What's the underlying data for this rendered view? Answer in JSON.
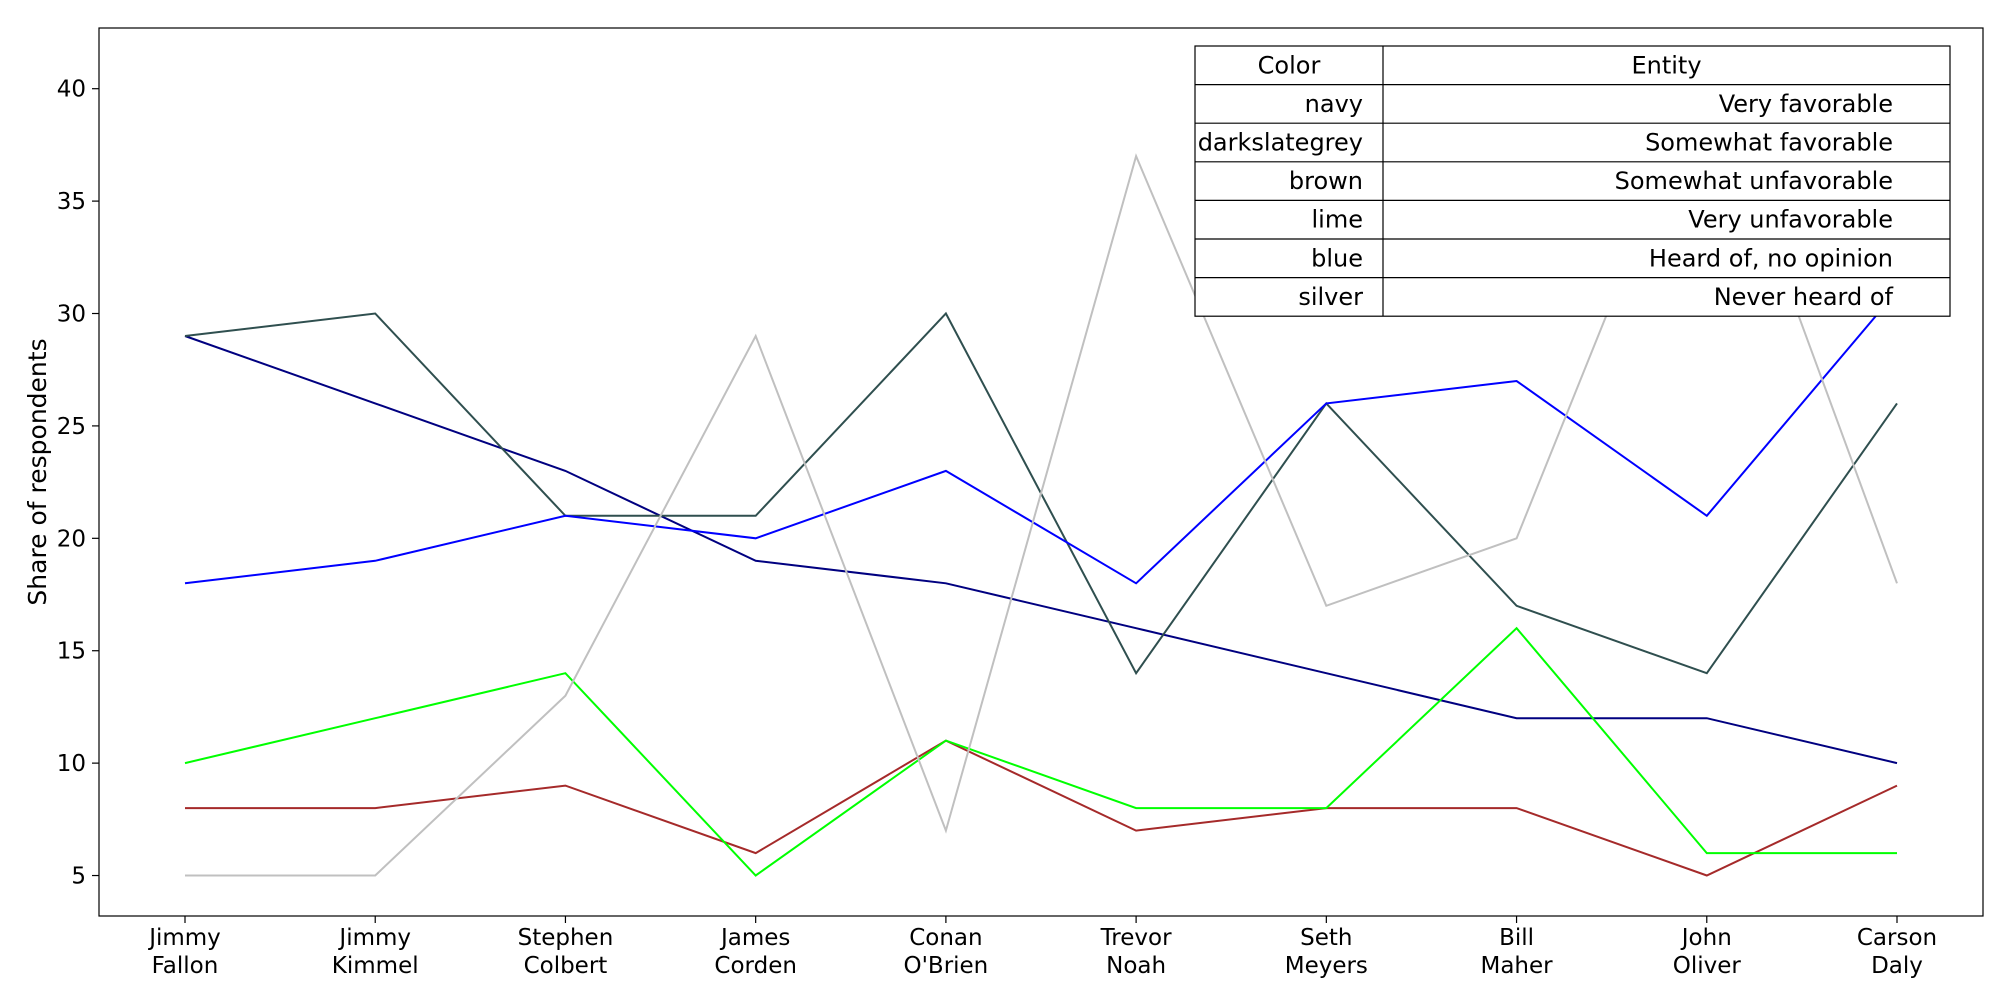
{
  "chart_data": {
    "type": "line",
    "title": "",
    "xlabel": "",
    "ylabel": "Share of respondents",
    "categories": [
      [
        "Jimmy",
        "Fallon"
      ],
      [
        "Jimmy",
        "Kimmel"
      ],
      [
        "Stephen",
        "Colbert"
      ],
      [
        "James",
        "Corden"
      ],
      [
        "Conan",
        "O'Brien"
      ],
      [
        "Trevor",
        "Noah"
      ],
      [
        "Seth",
        "Meyers"
      ],
      [
        "Bill",
        "Maher"
      ],
      [
        "John",
        "Oliver"
      ],
      [
        "Carson",
        "Daly"
      ]
    ],
    "ylim": [
      3.2,
      42.7
    ],
    "yticks": [
      5,
      10,
      15,
      20,
      25,
      30,
      35,
      40
    ],
    "grid": false,
    "series": [
      {
        "name": "Very favorable",
        "color": "#000080",
        "values": [
          29,
          26,
          23,
          19,
          18,
          16,
          14,
          12,
          12,
          10
        ]
      },
      {
        "name": "Somewhat favorable",
        "color": "#2F4F4F",
        "values": [
          29,
          30,
          21,
          21,
          30,
          14,
          26,
          17,
          14,
          26
        ]
      },
      {
        "name": "Somewhat unfavorable",
        "color": "#A52A2A",
        "values": [
          8,
          8,
          9,
          6,
          11,
          7,
          8,
          8,
          5,
          9
        ]
      },
      {
        "name": "Very unfavorable",
        "color": "#00FF00",
        "values": [
          10,
          12,
          14,
          5,
          11,
          8,
          8,
          16,
          6,
          6
        ]
      },
      {
        "name": "Heard of, no opinion",
        "color": "#0000FF",
        "values": [
          18,
          19,
          21,
          20,
          23,
          18,
          26,
          27,
          21,
          31
        ]
      },
      {
        "name": "Never heard of",
        "color": "#C0C0C0",
        "values": [
          5,
          5,
          13,
          29,
          7,
          37,
          17,
          20,
          41,
          18
        ]
      }
    ],
    "legend_table": {
      "placement": "top-right",
      "headers": [
        "Color",
        "Entity"
      ],
      "rows": [
        [
          "navy",
          "Very favorable"
        ],
        [
          "darkslategrey",
          "Somewhat favorable"
        ],
        [
          "brown",
          "Somewhat unfavorable"
        ],
        [
          "lime",
          "Very unfavorable"
        ],
        [
          "blue",
          "Heard of, no opinion"
        ],
        [
          "silver",
          "Never heard of"
        ]
      ]
    }
  }
}
